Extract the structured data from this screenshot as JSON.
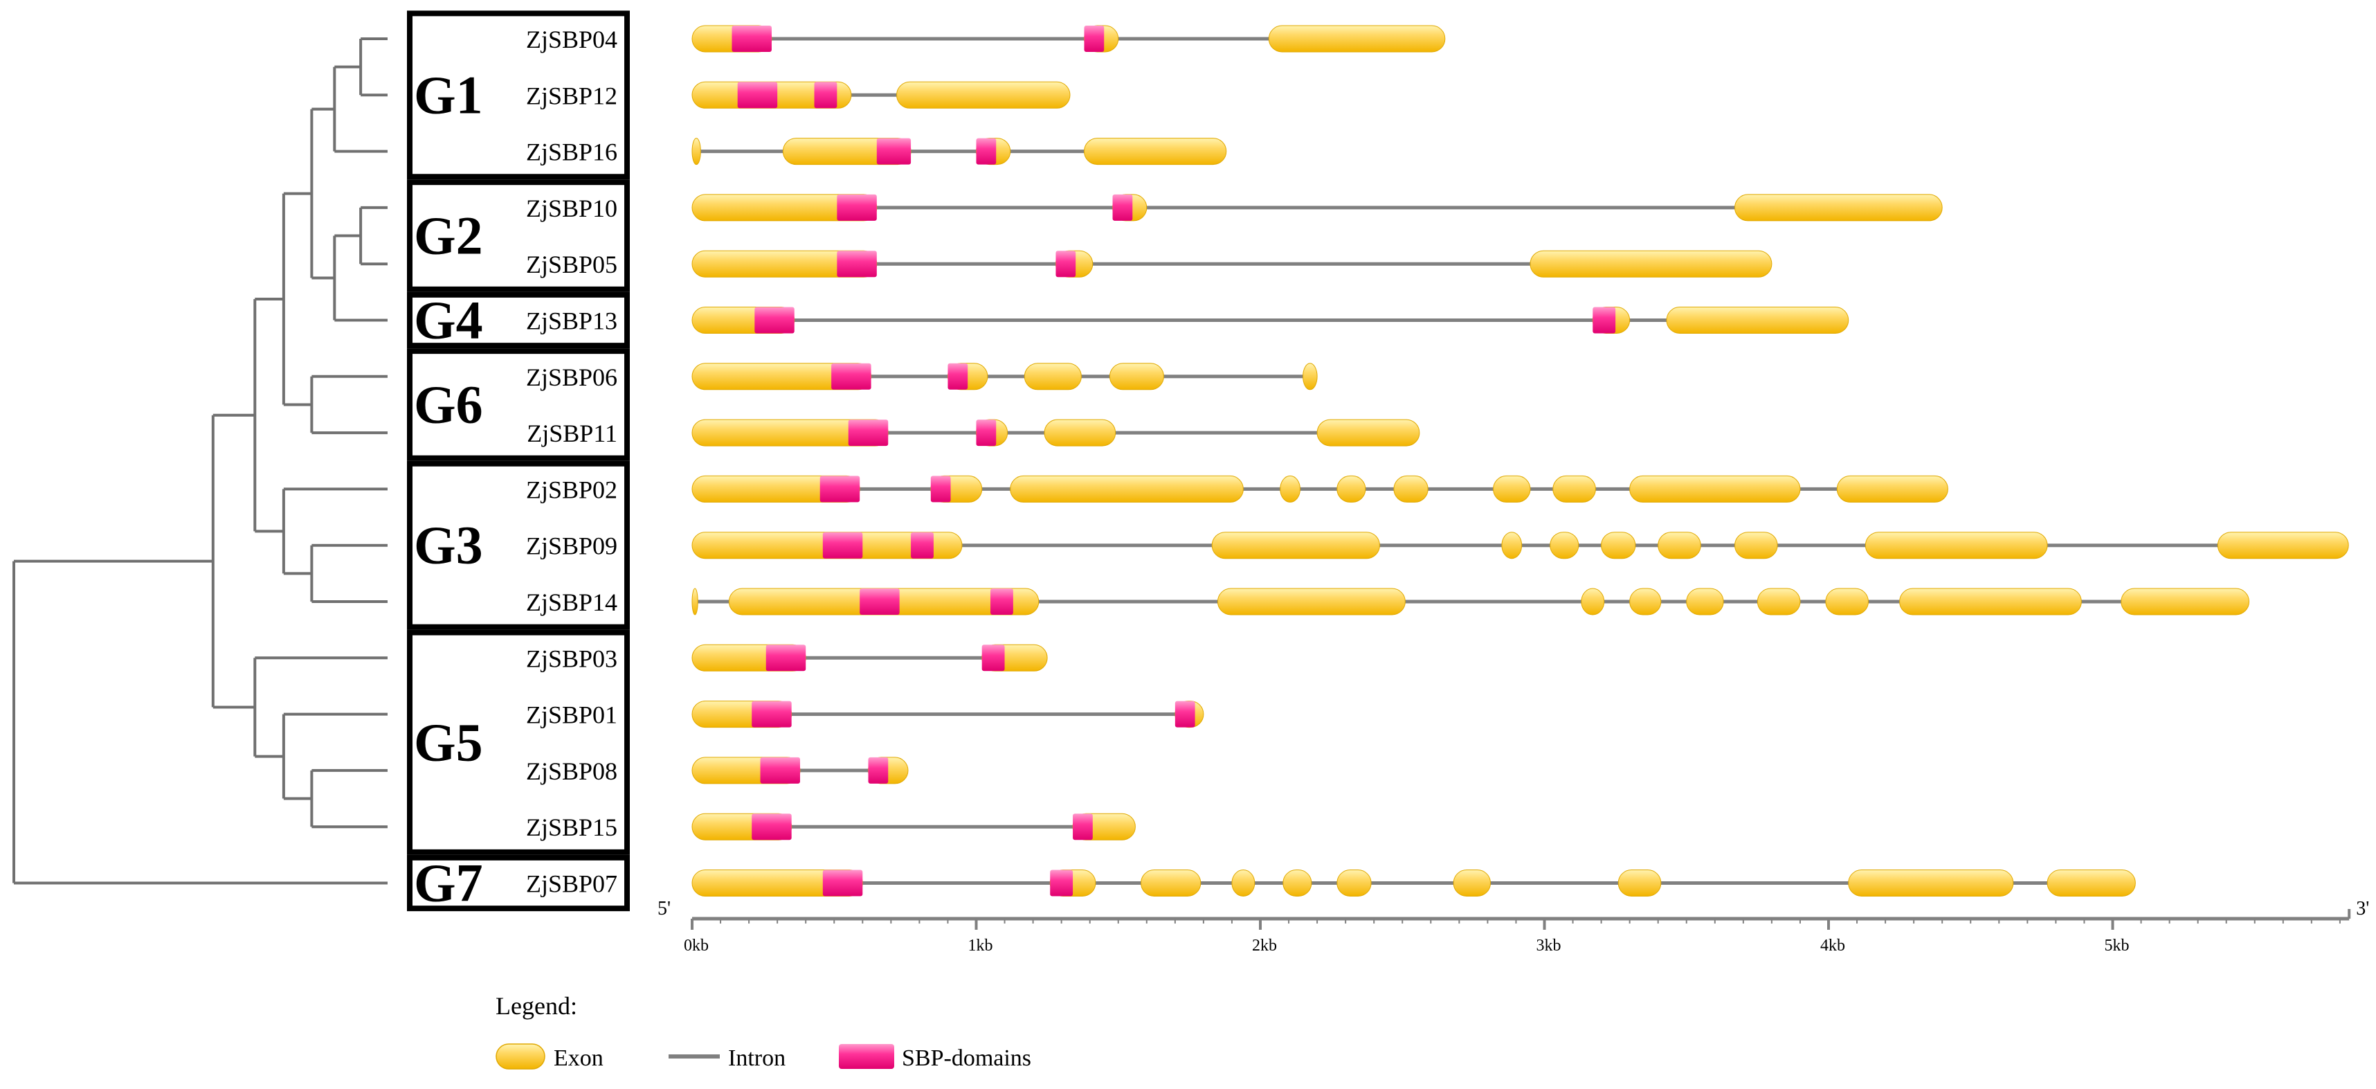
{
  "colors": {
    "exon_fill": "#ffd966",
    "exon_stroke": "#e0a800",
    "domain_fill": "#ff3399",
    "domain_light": "#ff99cc",
    "intron": "#808080",
    "tree": "#707070",
    "box": "#000000"
  },
  "groups": [
    {
      "name": "G1",
      "rows": [
        0,
        2
      ]
    },
    {
      "name": "G2",
      "rows": [
        3,
        4
      ]
    },
    {
      "name": "G4",
      "rows": [
        5,
        5
      ]
    },
    {
      "name": "G6",
      "rows": [
        6,
        7
      ]
    },
    {
      "name": "G3",
      "rows": [
        8,
        10
      ]
    },
    {
      "name": "G5",
      "rows": [
        11,
        14
      ]
    },
    {
      "name": "G7",
      "rows": [
        15,
        15
      ]
    }
  ],
  "tree": {
    "nodes": [
      {
        "id": "n0104",
        "depth": 0.928,
        "children": [
          "L0",
          "L1"
        ]
      },
      {
        "id": "nG1",
        "depth": 0.858,
        "children": [
          "n0104",
          "L2"
        ]
      },
      {
        "id": "nG2",
        "depth": 0.928,
        "children": [
          "L3",
          "L4"
        ]
      },
      {
        "id": "nG24",
        "depth": 0.858,
        "children": [
          "nG2",
          "L5"
        ]
      },
      {
        "id": "nG124",
        "depth": 0.797,
        "children": [
          "nG1",
          "nG24"
        ]
      },
      {
        "id": "nG6",
        "depth": 0.797,
        "children": [
          "L6",
          "L7"
        ]
      },
      {
        "id": "nA",
        "depth": 0.722,
        "children": [
          "nG124",
          "nG6"
        ]
      },
      {
        "id": "nG3i",
        "depth": 0.797,
        "children": [
          "L9",
          "L10"
        ]
      },
      {
        "id": "nG3",
        "depth": 0.722,
        "children": [
          "L8",
          "nG3i"
        ]
      },
      {
        "id": "nB",
        "depth": 0.645,
        "children": [
          "nA",
          "nG3"
        ]
      },
      {
        "id": "nG5i",
        "depth": 0.797,
        "children": [
          "L13",
          "L14"
        ]
      },
      {
        "id": "nG5j",
        "depth": 0.722,
        "children": [
          "L12",
          "nG5i"
        ]
      },
      {
        "id": "nG5",
        "depth": 0.645,
        "children": [
          "L11",
          "nG5j"
        ]
      },
      {
        "id": "nC",
        "depth": 0.533,
        "children": [
          "nB",
          "nG5"
        ]
      },
      {
        "id": "root",
        "depth": 0.0,
        "children": [
          "nC",
          "L15"
        ]
      }
    ]
  },
  "genes": [
    {
      "name": "ZjSBP04",
      "length": 2.65,
      "exons": [
        [
          0,
          0.28
        ],
        [
          1.38,
          1.5
        ],
        [
          2.03,
          2.65
        ]
      ],
      "domains": [
        [
          0.14,
          0.28
        ],
        [
          1.38,
          1.45
        ]
      ]
    },
    {
      "name": "ZjSBP12",
      "length": 1.33,
      "exons": [
        [
          0,
          0.56
        ],
        [
          0.72,
          1.33
        ]
      ],
      "domains": [
        [
          0.16,
          0.3
        ],
        [
          0.43,
          0.51
        ]
      ]
    },
    {
      "name": "ZjSBP16",
      "length": 1.88,
      "exons": [
        [
          0,
          0.03
        ],
        [
          0.32,
          0.77
        ],
        [
          1.0,
          1.12
        ],
        [
          1.38,
          1.88
        ]
      ],
      "domains": [
        [
          0.65,
          0.77
        ],
        [
          1.0,
          1.07
        ]
      ]
    },
    {
      "name": "ZjSBP10",
      "length": 4.4,
      "exons": [
        [
          0,
          0.65
        ],
        [
          1.48,
          1.6
        ],
        [
          3.67,
          4.4
        ]
      ],
      "domains": [
        [
          0.51,
          0.65
        ],
        [
          1.48,
          1.55
        ]
      ]
    },
    {
      "name": "ZjSBP05",
      "length": 3.8,
      "exons": [
        [
          0,
          0.65
        ],
        [
          1.28,
          1.41
        ],
        [
          2.95,
          3.8
        ]
      ],
      "domains": [
        [
          0.51,
          0.65
        ],
        [
          1.28,
          1.35
        ]
      ]
    },
    {
      "name": "ZjSBP13",
      "length": 4.07,
      "exons": [
        [
          0,
          0.36
        ],
        [
          3.17,
          3.3
        ],
        [
          3.43,
          4.07
        ]
      ],
      "domains": [
        [
          0.22,
          0.36
        ],
        [
          3.17,
          3.25
        ]
      ]
    },
    {
      "name": "ZjSBP06",
      "length": 2.2,
      "exons": [
        [
          0,
          0.63
        ],
        [
          0.9,
          1.04
        ],
        [
          1.17,
          1.37
        ],
        [
          1.47,
          1.66
        ],
        [
          2.15,
          2.2
        ]
      ],
      "domains": [
        [
          0.49,
          0.63
        ],
        [
          0.9,
          0.97
        ]
      ]
    },
    {
      "name": "ZjSBP11",
      "length": 2.56,
      "exons": [
        [
          0,
          0.69
        ],
        [
          1.0,
          1.11
        ],
        [
          1.24,
          1.49
        ],
        [
          2.2,
          2.56
        ]
      ],
      "domains": [
        [
          0.55,
          0.69
        ],
        [
          1.0,
          1.07
        ]
      ]
    },
    {
      "name": "ZjSBP02",
      "length": 4.42,
      "exons": [
        [
          0,
          0.59
        ],
        [
          0.84,
          1.02
        ],
        [
          1.12,
          1.94
        ],
        [
          2.07,
          2.14
        ],
        [
          2.27,
          2.37
        ],
        [
          2.47,
          2.59
        ],
        [
          2.82,
          2.95
        ],
        [
          3.03,
          3.18
        ],
        [
          3.3,
          3.9
        ],
        [
          4.03,
          4.42
        ]
      ],
      "domains": [
        [
          0.45,
          0.59
        ],
        [
          0.84,
          0.91
        ]
      ]
    },
    {
      "name": "ZjSBP09",
      "length": 5.83,
      "exons": [
        [
          0,
          0.95
        ],
        [
          1.83,
          2.42
        ],
        [
          2.85,
          2.92
        ],
        [
          3.02,
          3.12
        ],
        [
          3.2,
          3.32
        ],
        [
          3.4,
          3.55
        ],
        [
          3.67,
          3.82
        ],
        [
          4.13,
          4.77
        ],
        [
          5.37,
          5.83
        ]
      ],
      "domains": [
        [
          0.46,
          0.6
        ],
        [
          0.77,
          0.85
        ]
      ]
    },
    {
      "name": "ZjSBP14",
      "length": 5.48,
      "exons": [
        [
          0,
          0.02
        ],
        [
          0.13,
          1.22
        ],
        [
          1.85,
          2.51
        ],
        [
          3.13,
          3.21
        ],
        [
          3.3,
          3.41
        ],
        [
          3.5,
          3.63
        ],
        [
          3.75,
          3.9
        ],
        [
          3.99,
          4.14
        ],
        [
          4.25,
          4.89
        ],
        [
          5.03,
          5.48
        ]
      ],
      "domains": [
        [
          0.59,
          0.73
        ],
        [
          1.05,
          1.13
        ]
      ]
    },
    {
      "name": "ZjSBP03",
      "length": 1.25,
      "exons": [
        [
          0,
          0.4
        ],
        [
          1.02,
          1.25
        ]
      ],
      "domains": [
        [
          0.26,
          0.4
        ],
        [
          1.02,
          1.1
        ]
      ]
    },
    {
      "name": "ZjSBP01",
      "length": 1.8,
      "exons": [
        [
          0,
          0.35
        ],
        [
          1.7,
          1.8
        ]
      ],
      "domains": [
        [
          0.21,
          0.35
        ],
        [
          1.7,
          1.77
        ]
      ]
    },
    {
      "name": "ZjSBP08",
      "length": 0.76,
      "exons": [
        [
          0,
          0.38
        ],
        [
          0.62,
          0.76
        ]
      ],
      "domains": [
        [
          0.24,
          0.38
        ],
        [
          0.62,
          0.69
        ]
      ]
    },
    {
      "name": "ZjSBP15",
      "length": 1.56,
      "exons": [
        [
          0,
          0.35
        ],
        [
          1.34,
          1.56
        ]
      ],
      "domains": [
        [
          0.21,
          0.35
        ],
        [
          1.34,
          1.41
        ]
      ]
    },
    {
      "name": "ZjSBP07",
      "length": 5.08,
      "exons": [
        [
          0,
          0.6
        ],
        [
          1.26,
          1.42
        ],
        [
          1.58,
          1.79
        ],
        [
          1.9,
          1.98
        ],
        [
          2.08,
          2.18
        ],
        [
          2.27,
          2.39
        ],
        [
          2.68,
          2.81
        ],
        [
          3.26,
          3.41
        ],
        [
          4.07,
          4.65
        ],
        [
          4.77,
          5.08
        ]
      ],
      "domains": [
        [
          0.46,
          0.6
        ],
        [
          1.26,
          1.34
        ]
      ]
    }
  ],
  "axis": {
    "min": 0,
    "max": 5.83,
    "ticks": [
      0,
      1,
      2,
      3,
      4,
      5
    ],
    "tick_labels": [
      "0kb",
      "1kb",
      "2kb",
      "3kb",
      "4kb",
      "5kb"
    ],
    "left_end_label": "5'",
    "right_end_label": "3'"
  },
  "legend": {
    "title": "Legend:",
    "exon_label": "Exon",
    "intron_label": "Intron",
    "domain_label": "SBP-domains"
  }
}
